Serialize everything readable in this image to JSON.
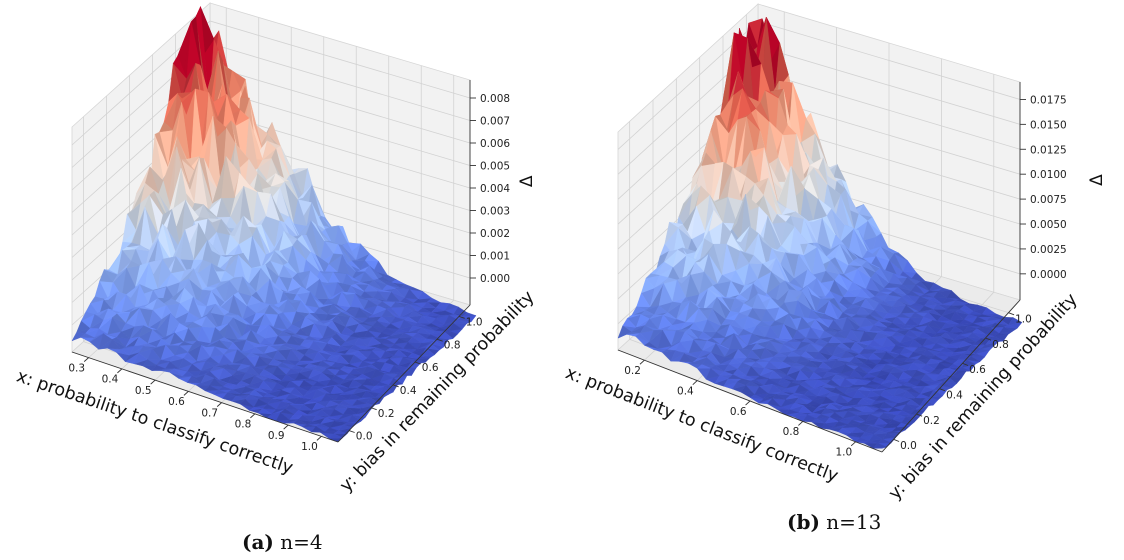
{
  "chart_data": [
    {
      "type": "surface3d",
      "caption_tag": "(a)",
      "caption_text": "n=4",
      "xlabel": "x: probability to classify correctly",
      "ylabel": "y: bias in remaining probability",
      "zlabel": "Δ",
      "x_ticks": [
        "0.3",
        "0.4",
        "0.5",
        "0.6",
        "0.7",
        "0.8",
        "0.9",
        "1.0"
      ],
      "y_ticks": [
        "0.0",
        "0.2",
        "0.4",
        "0.6",
        "0.8",
        "1.0"
      ],
      "z_ticks": [
        "0.000",
        "0.001",
        "0.002",
        "0.003",
        "0.004",
        "0.005",
        "0.006",
        "0.007",
        "0.008"
      ],
      "xlim": [
        0.25,
        1.0
      ],
      "ylim": [
        0.0,
        1.0
      ],
      "zlim": [
        0.0,
        0.0085
      ],
      "colormap": "coolwarm",
      "peak": {
        "x": 0.27,
        "y": 0.85,
        "z": 0.0088
      },
      "grid": true
    },
    {
      "type": "surface3d",
      "caption_tag": "(b)",
      "caption_text": "n=13",
      "xlabel": "x: probability to classify correctly",
      "ylabel": "y: bias in remaining probability",
      "zlabel": "Δ",
      "x_ticks": [
        "0.2",
        "0.4",
        "0.6",
        "0.8",
        "1.0"
      ],
      "y_ticks": [
        "0.0",
        "0.2",
        "0.4",
        "0.6",
        "0.8",
        "1.0"
      ],
      "z_ticks": [
        "0.0000",
        "0.0025",
        "0.0050",
        "0.0075",
        "0.0100",
        "0.0125",
        "0.0150",
        "0.0175"
      ],
      "xlim": [
        0.08,
        1.0
      ],
      "ylim": [
        0.0,
        1.0
      ],
      "zlim": [
        0.0,
        0.019
      ],
      "colormap": "coolwarm",
      "peak": {
        "x": 0.12,
        "y": 0.85,
        "z": 0.0195
      },
      "grid": true
    }
  ]
}
